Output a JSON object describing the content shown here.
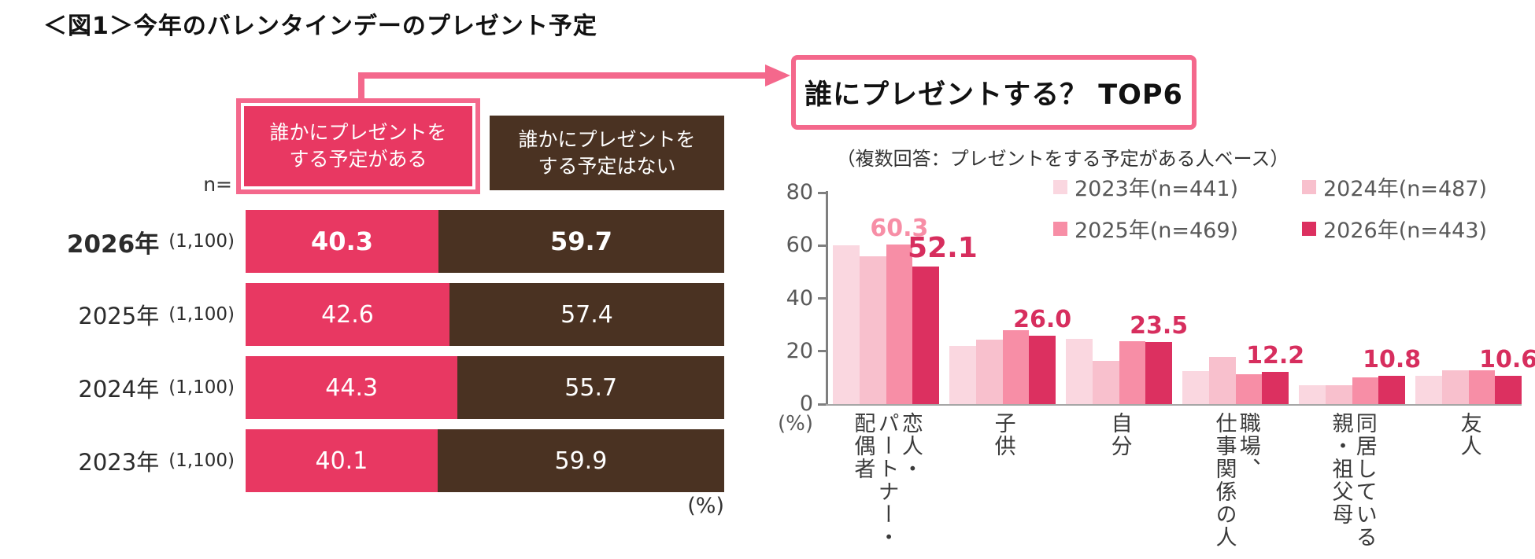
{
  "figure_title": "＜図1＞今年のバレンタインデーのプレゼント予定",
  "left_chart": {
    "n_label": "n=",
    "header_yes": "誰かにプレゼントを\nする予定がある",
    "header_no": "誰かにプレゼントを\nする予定はない",
    "unit": "(%)"
  },
  "callout": {
    "title": "誰にプレゼントする？ TOP6",
    "subtitle": "（複数回答：プレゼントをする予定がある人ベース）"
  },
  "colors": {
    "plan_yes": "#e83862",
    "plan_no": "#4a3222",
    "accent_border": "#f4688c",
    "annotation": "#d72e5e",
    "legend_text": "#595959"
  },
  "chart_data": [
    {
      "type": "bar",
      "subtype": "stacked-horizontal",
      "title": "今年のバレンタインデーのプレゼント予定",
      "categories": [
        "2026年",
        "2025年",
        "2024年",
        "2023年"
      ],
      "n_values": [
        "(1,100)",
        "(1,100)",
        "(1,100)",
        "(1,100)"
      ],
      "series": [
        {
          "name": "誰かにプレゼントをする予定がある",
          "color": "#e83862",
          "values": [
            40.3,
            42.6,
            44.3,
            40.1
          ]
        },
        {
          "name": "誰かにプレゼントをする予定はない",
          "color": "#4a3222",
          "values": [
            59.7,
            57.4,
            55.7,
            59.9
          ]
        }
      ],
      "unit": "(%)",
      "xlim": [
        0,
        100
      ],
      "grid": false
    },
    {
      "type": "bar",
      "subtype": "grouped-vertical",
      "title": "誰にプレゼントする？ TOP6",
      "subtitle": "（複数回答：プレゼントをする予定がある人ベース）",
      "categories": [
        [
          "恋人・",
          "パートナー・",
          "配偶者"
        ],
        [
          "子供"
        ],
        [
          "自分"
        ],
        [
          "職場、",
          "仕事関係の人"
        ],
        [
          "同居している",
          "親・祖父母"
        ],
        [
          "友人"
        ]
      ],
      "series": [
        {
          "name": "2023年(n=441)",
          "color": "#fad7e0",
          "values": [
            60.2,
            21.9,
            24.6,
            12.4,
            7.0,
            10.7
          ]
        },
        {
          "name": "2024年(n=487)",
          "color": "#f8c0cd",
          "values": [
            55.8,
            24.3,
            16.5,
            17.9,
            7.2,
            12.7
          ]
        },
        {
          "name": "2025年(n=469)",
          "color": "#f78ea6",
          "values": [
            60.3,
            27.9,
            23.8,
            11.3,
            10.0,
            12.7
          ]
        },
        {
          "name": "2026年(n=443)",
          "color": "#dc3060",
          "values": [
            52.1,
            26.0,
            23.5,
            12.2,
            10.8,
            10.6
          ]
        }
      ],
      "annotations": [
        {
          "text": "60.3",
          "category": 0,
          "series": 2,
          "style": "series-color"
        },
        {
          "text": "52.1",
          "category": 0,
          "series": 3,
          "style": "accent-large"
        },
        {
          "text": "26.0",
          "category": 1,
          "series": 3,
          "style": "accent"
        },
        {
          "text": "23.5",
          "category": 2,
          "series": 3,
          "style": "accent"
        },
        {
          "text": "12.2",
          "category": 3,
          "series": 3,
          "style": "accent"
        },
        {
          "text": "10.8",
          "category": 4,
          "series": 3,
          "style": "accent"
        },
        {
          "text": "10.6",
          "category": 5,
          "series": 3,
          "style": "accent"
        }
      ],
      "y_ticks": [
        0,
        20,
        40,
        60,
        80
      ],
      "ylim": [
        0,
        80
      ],
      "unit": "(%)",
      "legend_position": "top-right",
      "grid": false
    }
  ]
}
